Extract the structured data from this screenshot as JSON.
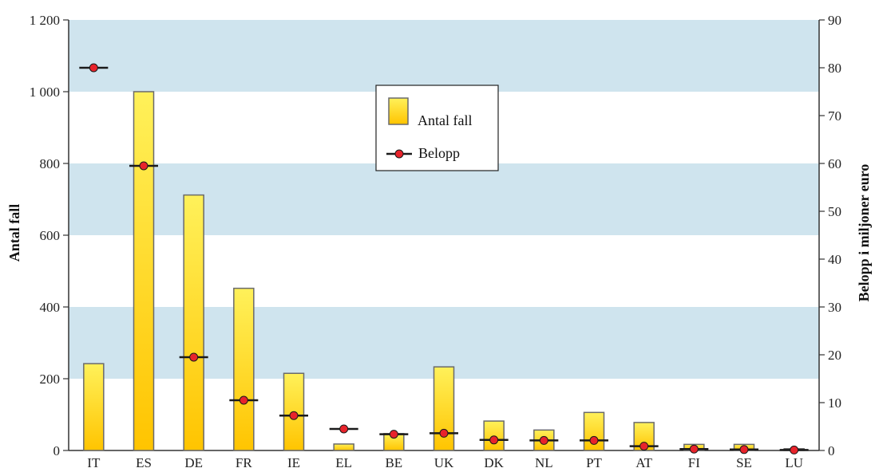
{
  "chart_data": {
    "type": "bar",
    "categories": [
      "IT",
      "ES",
      "DE",
      "FR",
      "IE",
      "EL",
      "BE",
      "UK",
      "DK",
      "NL",
      "PT",
      "AT",
      "FI",
      "SE",
      "LU"
    ],
    "series": [
      {
        "name": "Antal fall",
        "type": "bar",
        "axis": "left",
        "values": [
          242,
          1000,
          712,
          452,
          215,
          18,
          47,
          233,
          82,
          57,
          106,
          78,
          17,
          17,
          5
        ]
      },
      {
        "name": "Belopp",
        "type": "marker",
        "axis": "right",
        "values": [
          80,
          59.5,
          19.5,
          10.5,
          7.3,
          4.5,
          3.4,
          3.6,
          2.2,
          2.1,
          2.1,
          0.9,
          0.3,
          0.2,
          0.1
        ]
      }
    ],
    "ylabel": "Antal fall",
    "y2label": "Belopp i miljoner euro",
    "xlabel": "",
    "ylim": [
      0,
      1200
    ],
    "y2lim": [
      0,
      90
    ],
    "yticks": [
      0,
      200,
      400,
      600,
      800,
      1000,
      1200
    ],
    "yticklabels": [
      "0",
      "200",
      "400",
      "600",
      "800",
      "1 000",
      "1 200"
    ],
    "y2ticks": [
      0,
      10,
      20,
      30,
      40,
      50,
      60,
      70,
      80,
      90
    ],
    "y2ticklabels": [
      "0",
      "10",
      "20",
      "30",
      "40",
      "50",
      "60",
      "70",
      "80",
      "90"
    ],
    "background": "alternating horizontal bands",
    "legend": {
      "placement": "top-center",
      "entries": [
        "Antal fall",
        "Belopp"
      ]
    },
    "colors": {
      "band": "#cfe4ee",
      "bar_top": "#fff15a",
      "bar_bottom": "#ffc400",
      "bar_border": "#6a6a6a",
      "marker": "#e8232b",
      "marker_line": "#1a1a1a"
    }
  }
}
